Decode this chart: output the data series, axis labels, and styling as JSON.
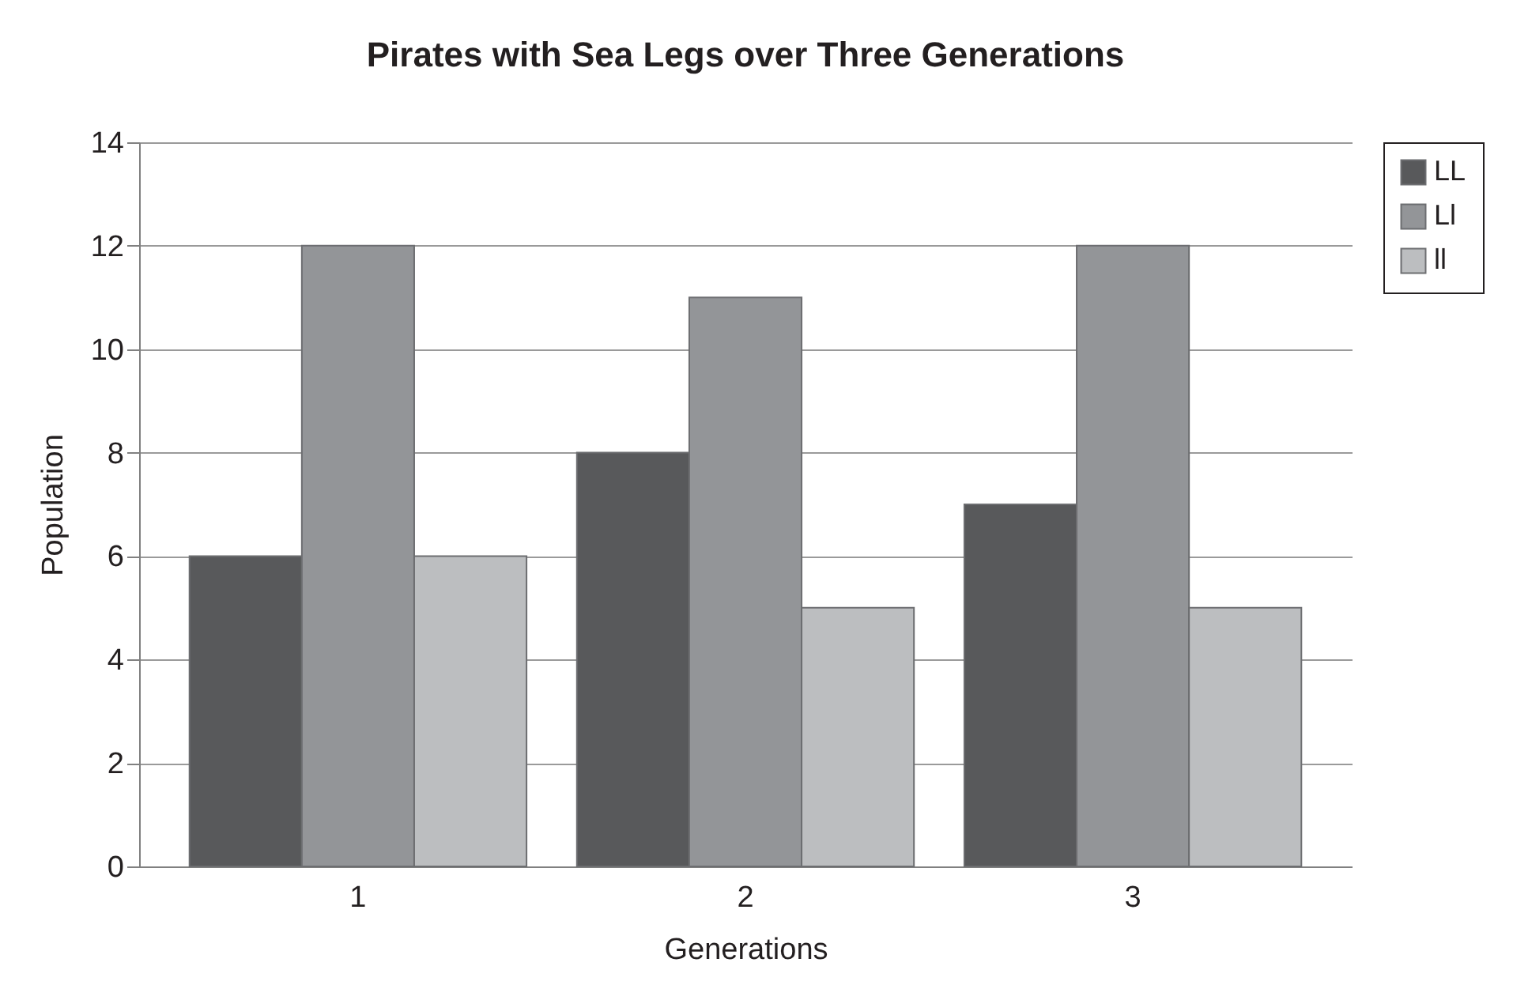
{
  "chart_data": {
    "type": "bar",
    "title": "Pirates with Sea Legs over Three Generations",
    "xlabel": "Generations",
    "ylabel": "Population",
    "categories": [
      "1",
      "2",
      "3"
    ],
    "series": [
      {
        "name": "LL",
        "color": "#58595b",
        "values": [
          6,
          8,
          7
        ]
      },
      {
        "name": "Ll",
        "color": "#939598",
        "values": [
          12,
          11,
          12
        ]
      },
      {
        "name": "ll",
        "color": "#bcbec0",
        "values": [
          6,
          5,
          5
        ]
      }
    ],
    "ylim": [
      0,
      14
    ],
    "yticks": [
      0,
      2,
      4,
      6,
      8,
      10,
      12,
      14
    ],
    "grid": "y",
    "legend": "right"
  }
}
